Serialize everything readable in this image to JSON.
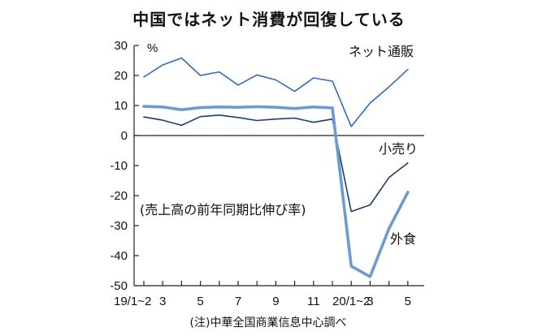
{
  "chart_data": {
    "type": "line",
    "title": "中国ではネット消費が回復している",
    "unit_label": "%",
    "annotation": "(売上高の前年同期比伸び率)",
    "note": "(注)中華全国商業信息中心調べ",
    "ylim": [
      -50,
      30
    ],
    "y_ticks": [
      30,
      20,
      10,
      0,
      -10,
      -20,
      -30,
      -40,
      -50
    ],
    "y_tick_labels": [
      "30",
      "20",
      "10",
      "0",
      "-10",
      "-20",
      "-30",
      "-40",
      "-50"
    ],
    "grid": false,
    "months": [
      "19/2",
      "19/3",
      "19/4",
      "19/5",
      "19/6",
      "19/7",
      "19/8",
      "19/9",
      "19/10",
      "19/11",
      "19/12",
      "20/2",
      "20/3",
      "20/4",
      "20/5"
    ],
    "x_tick_labels": [
      {
        "label": "19/1~2",
        "month": "19/2"
      },
      {
        "label": "3",
        "month": "19/3"
      },
      {
        "label": "5",
        "month": "19/5"
      },
      {
        "label": "7",
        "month": "19/7"
      },
      {
        "label": "9",
        "month": "19/9"
      },
      {
        "label": "11",
        "month": "19/11"
      },
      {
        "label": "20/1~2",
        "month": "20/2"
      },
      {
        "label": "3",
        "month": "20/3"
      },
      {
        "label": "5",
        "month": "20/5"
      }
    ],
    "series": [
      {
        "name": "ネット通販",
        "color": "#2f6db5",
        "style": "thin",
        "values": [
          19.5,
          23.5,
          25.8,
          20,
          21.2,
          16.8,
          20.2,
          18.5,
          14.7,
          19.2,
          18.1,
          3,
          10.8,
          16.2,
          22
        ]
      },
      {
        "name": "小売り",
        "color": "#1a3f6e",
        "style": "thin",
        "values": [
          6.2,
          5.1,
          3.4,
          6.3,
          6.8,
          6,
          5,
          5.5,
          5.8,
          4.4,
          5.5,
          -25.3,
          -23.1,
          -14,
          -9.1
        ]
      },
      {
        "name": "外食",
        "color": "#6b9bd2",
        "style": "thick",
        "values": [
          9.7,
          9.5,
          8.6,
          9.3,
          9.5,
          9.4,
          9.6,
          9.4,
          9,
          9.5,
          9.2,
          -43.5,
          -47,
          -31,
          -18.9
        ]
      }
    ]
  }
}
